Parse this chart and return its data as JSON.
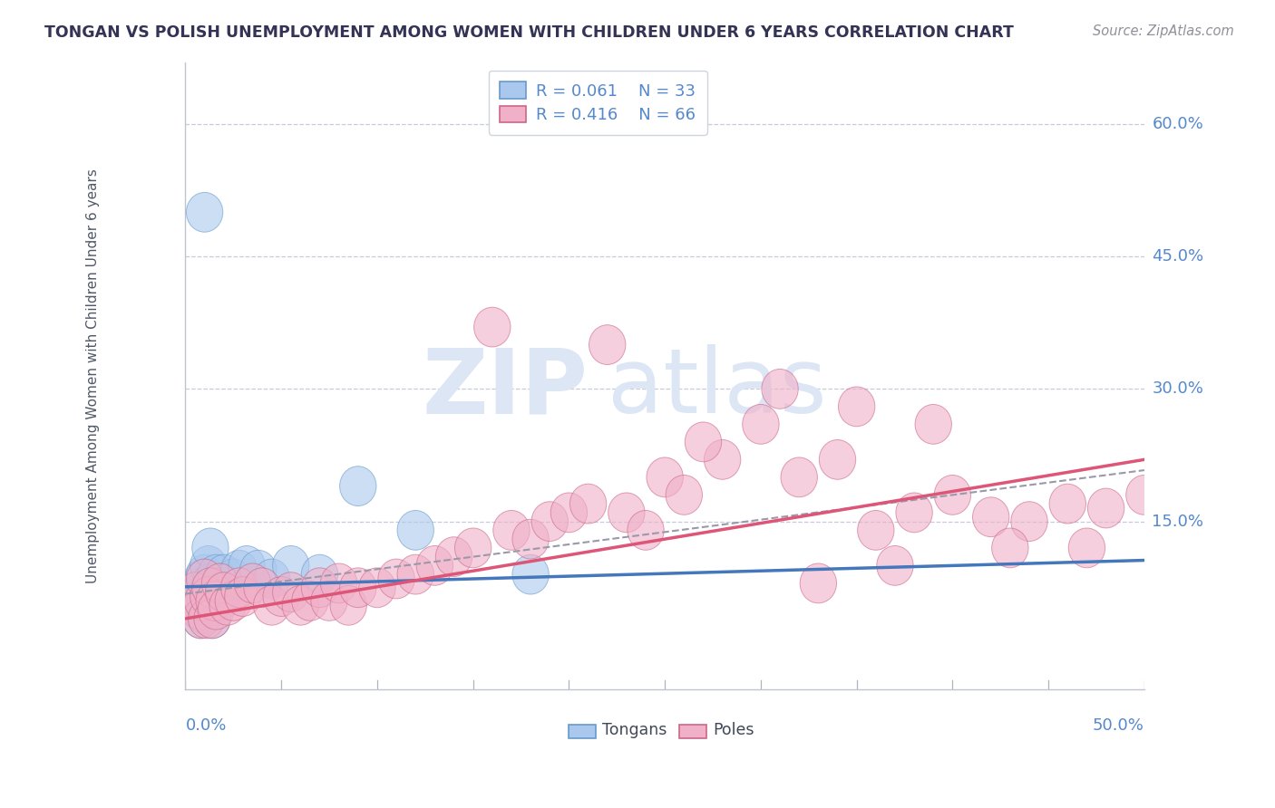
{
  "title": "TONGAN VS POLISH UNEMPLOYMENT AMONG WOMEN WITH CHILDREN UNDER 6 YEARS CORRELATION CHART",
  "source": "Source: ZipAtlas.com",
  "ylabel": "Unemployment Among Women with Children Under 6 years",
  "ylabels": [
    "15.0%",
    "30.0%",
    "45.0%",
    "60.0%"
  ],
  "ylabel_values": [
    0.15,
    0.3,
    0.45,
    0.6
  ],
  "xmin": 0.0,
  "xmax": 0.5,
  "ymin": -0.04,
  "ymax": 0.67,
  "legend_r1": "R = 0.061",
  "legend_n1": "N = 33",
  "legend_r2": "R = 0.416",
  "legend_n2": "N = 66",
  "legend_label1": "Tongans",
  "legend_label2": "Poles",
  "color_tongans_fill": "#aac8ee",
  "color_tongans_edge": "#6699cc",
  "color_poles_fill": "#f0b0c8",
  "color_poles_edge": "#cc6688",
  "color_line_tongans": "#4477bb",
  "color_line_poles": "#dd5577",
  "color_dashed": "#9999aa",
  "color_axis_labels": "#5588cc",
  "color_title": "#333355",
  "color_legend_text": "#5588cc",
  "color_watermark": "#dde6f4",
  "watermark_zip": "ZIP",
  "watermark_atlas": "atlas",
  "slope_tongans": 0.06,
  "intercept_tongans": 0.076,
  "slope_poles": 0.36,
  "intercept_poles": 0.04,
  "slope_dashed": 0.28,
  "intercept_dashed": 0.068,
  "tongans_x": [
    0.008,
    0.008,
    0.008,
    0.008,
    0.009,
    0.009,
    0.01,
    0.01,
    0.01,
    0.012,
    0.012,
    0.013,
    0.013,
    0.014,
    0.014,
    0.015,
    0.016,
    0.017,
    0.018,
    0.019,
    0.02,
    0.022,
    0.025,
    0.028,
    0.032,
    0.038,
    0.045,
    0.055,
    0.07,
    0.09,
    0.12,
    0.18,
    0.01
  ],
  "tongans_y": [
    0.07,
    0.06,
    0.05,
    0.04,
    0.085,
    0.075,
    0.09,
    0.065,
    0.045,
    0.1,
    0.055,
    0.12,
    0.08,
    0.065,
    0.04,
    0.075,
    0.09,
    0.07,
    0.06,
    0.08,
    0.09,
    0.075,
    0.085,
    0.095,
    0.1,
    0.095,
    0.085,
    0.1,
    0.09,
    0.19,
    0.14,
    0.09,
    0.5
  ],
  "poles_x": [
    0.005,
    0.007,
    0.008,
    0.009,
    0.01,
    0.011,
    0.012,
    0.013,
    0.014,
    0.015,
    0.016,
    0.018,
    0.02,
    0.022,
    0.025,
    0.028,
    0.03,
    0.035,
    0.04,
    0.045,
    0.05,
    0.055,
    0.06,
    0.065,
    0.07,
    0.075,
    0.08,
    0.085,
    0.09,
    0.1,
    0.11,
    0.12,
    0.13,
    0.14,
    0.15,
    0.16,
    0.17,
    0.18,
    0.19,
    0.2,
    0.21,
    0.22,
    0.23,
    0.24,
    0.25,
    0.26,
    0.28,
    0.3,
    0.32,
    0.34,
    0.36,
    0.38,
    0.4,
    0.42,
    0.44,
    0.46,
    0.48,
    0.5,
    0.27,
    0.31,
    0.35,
    0.39,
    0.43,
    0.47,
    0.33,
    0.37
  ],
  "poles_y": [
    0.07,
    0.05,
    0.04,
    0.06,
    0.085,
    0.04,
    0.065,
    0.075,
    0.04,
    0.06,
    0.05,
    0.08,
    0.07,
    0.055,
    0.06,
    0.075,
    0.065,
    0.08,
    0.075,
    0.055,
    0.065,
    0.07,
    0.055,
    0.06,
    0.075,
    0.06,
    0.08,
    0.055,
    0.075,
    0.075,
    0.085,
    0.09,
    0.1,
    0.11,
    0.12,
    0.37,
    0.14,
    0.13,
    0.15,
    0.16,
    0.17,
    0.35,
    0.16,
    0.14,
    0.2,
    0.18,
    0.22,
    0.26,
    0.2,
    0.22,
    0.14,
    0.16,
    0.18,
    0.155,
    0.15,
    0.17,
    0.165,
    0.18,
    0.24,
    0.3,
    0.28,
    0.26,
    0.12,
    0.12,
    0.08,
    0.1
  ]
}
